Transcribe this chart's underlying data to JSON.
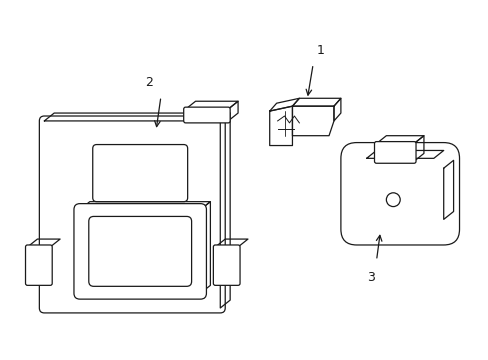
{
  "background_color": "#ffffff",
  "figure_width": 4.89,
  "figure_height": 3.6,
  "dpi": 100,
  "line_color": "#1a1a1a",
  "line_width": 0.9
}
